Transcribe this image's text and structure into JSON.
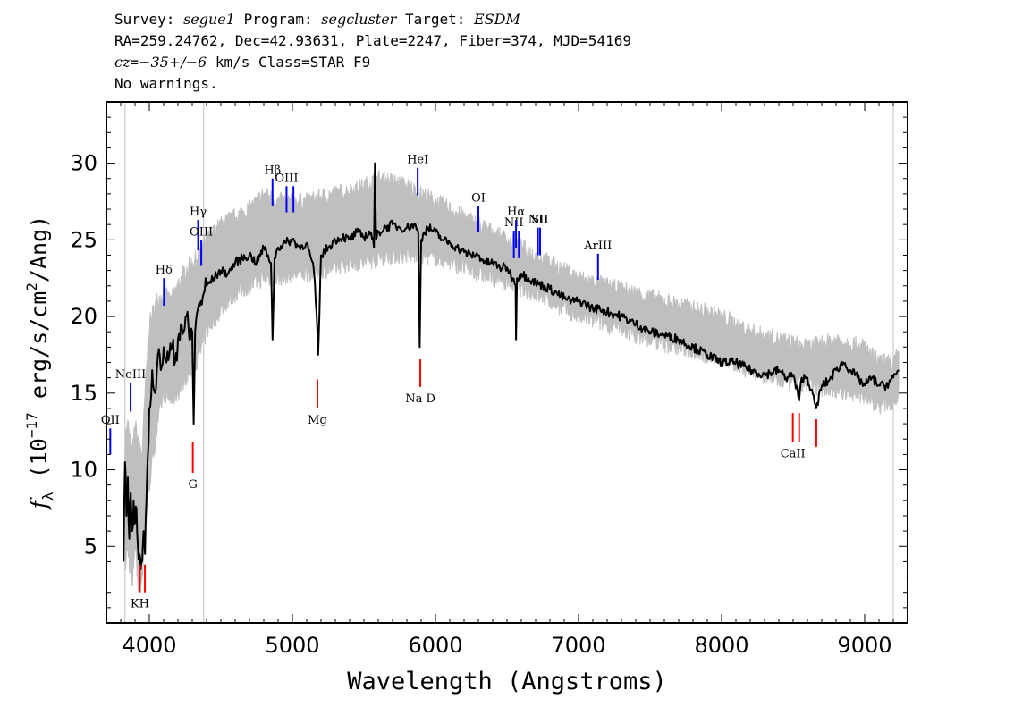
{
  "header": {
    "line1": {
      "survey_label": "Survey: ",
      "survey": "segue1",
      "program_label": " Program: ",
      "program": "segcluster",
      "target_label": " Target: ",
      "target": "ESDM"
    },
    "line2": "RA=259.24762, Dec=42.93631, Plate=2247, Fiber=374, MJD=54169",
    "line3": {
      "cz_label": "cz",
      "cz_eq": "=",
      "cz_value": "−35+/−6",
      "cz_rest": " km/s Class=STAR F9"
    },
    "line4": "No warnings."
  },
  "chart_data": {
    "type": "line",
    "title": "",
    "xlabel": "Wavelength (Angstroms)",
    "ylabel_parts": {
      "f": "f",
      "sub": "λ",
      "open": " (10",
      "exp": "−17",
      "mid": " erg/s/cm",
      "sq": "2",
      "close": "/Ang)"
    },
    "xlim": [
      3700,
      9300
    ],
    "ylim": [
      0,
      34
    ],
    "xticks": [
      4000,
      5000,
      6000,
      7000,
      8000,
      9000
    ],
    "yticks": [
      5,
      10,
      15,
      20,
      25,
      30
    ],
    "vertical_lines": [
      3830,
      4380,
      9200
    ],
    "series": [
      {
        "role": "error-envelope",
        "color": "#bfbfbf",
        "x": [
          3830,
          3850,
          3880,
          3900,
          3920,
          3950,
          3970,
          4000,
          4050,
          4100,
          4150,
          4200,
          4250,
          4300,
          4350,
          4400,
          4500,
          4600,
          4700,
          4800,
          4900,
          5000,
          5100,
          5200,
          5300,
          5400,
          5500,
          5600,
          5700,
          5800,
          5900,
          6000,
          6100,
          6200,
          6300,
          6400,
          6500,
          6600,
          6700,
          6800,
          6900,
          7000,
          7200,
          7400,
          7600,
          7800,
          8000,
          8200,
          8400,
          8600,
          8800,
          9000,
          9100,
          9200,
          9240
        ],
        "y_low": [
          3.5,
          5.0,
          2.0,
          5.5,
          2.5,
          3.0,
          6.0,
          9.0,
          12.5,
          15.0,
          14.5,
          15.0,
          16.0,
          16.5,
          17.5,
          19.0,
          20.5,
          21.5,
          22.0,
          22.5,
          22.5,
          22.8,
          22.8,
          23.0,
          23.2,
          23.5,
          23.5,
          23.8,
          24.0,
          24.0,
          24.0,
          23.8,
          23.5,
          23.2,
          22.8,
          22.5,
          22.3,
          21.8,
          21.5,
          21.0,
          20.5,
          20.0,
          19.5,
          18.8,
          18.2,
          17.8,
          17.2,
          16.5,
          15.8,
          15.5,
          15.2,
          14.8,
          14.2,
          14.5,
          15.0
        ],
        "y_high": [
          12.0,
          13.0,
          11.0,
          13.0,
          12.0,
          11.0,
          15.0,
          19.5,
          21.0,
          21.5,
          21.0,
          22.0,
          23.0,
          23.5,
          24.0,
          25.0,
          26.0,
          26.5,
          27.0,
          28.0,
          27.5,
          27.5,
          27.5,
          27.8,
          28.0,
          28.2,
          28.5,
          29.0,
          28.8,
          28.5,
          28.0,
          27.5,
          27.0,
          26.5,
          26.0,
          25.5,
          25.0,
          24.5,
          24.0,
          23.5,
          23.0,
          22.5,
          22.0,
          21.5,
          21.0,
          20.5,
          20.0,
          19.0,
          18.5,
          18.0,
          18.5,
          18.0,
          17.0,
          17.0,
          17.5
        ]
      },
      {
        "role": "flux",
        "color": "#000000",
        "x": [
          3820,
          3830,
          3840,
          3850,
          3860,
          3870,
          3880,
          3890,
          3900,
          3910,
          3920,
          3930,
          3940,
          3950,
          3960,
          3970,
          3980,
          3990,
          4000,
          4020,
          4040,
          4060,
          4080,
          4100,
          4120,
          4140,
          4160,
          4180,
          4200,
          4220,
          4240,
          4260,
          4280,
          4300,
          4310,
          4320,
          4340,
          4360,
          4380,
          4400,
          4450,
          4500,
          4550,
          4600,
          4650,
          4700,
          4750,
          4800,
          4830,
          4850,
          4861,
          4875,
          4900,
          4950,
          5000,
          5050,
          5100,
          5150,
          5170,
          5180,
          5190,
          5200,
          5250,
          5300,
          5350,
          5400,
          5450,
          5500,
          5550,
          5570,
          5577,
          5585,
          5600,
          5650,
          5700,
          5750,
          5800,
          5850,
          5880,
          5890,
          5900,
          5920,
          5950,
          6000,
          6050,
          6100,
          6150,
          6200,
          6250,
          6300,
          6350,
          6400,
          6450,
          6500,
          6540,
          6560,
          6563,
          6570,
          6600,
          6650,
          6700,
          6750,
          6800,
          6850,
          6900,
          6950,
          7000,
          7050,
          7100,
          7150,
          7200,
          7300,
          7400,
          7500,
          7600,
          7700,
          7800,
          7900,
          8000,
          8100,
          8200,
          8300,
          8400,
          8450,
          8500,
          8542,
          8560,
          8600,
          8662,
          8700,
          8750,
          8800,
          8850,
          8900,
          8950,
          9000,
          9050,
          9100,
          9150,
          9200,
          9240
        ],
        "y": [
          4.0,
          10.5,
          7.0,
          9.5,
          5.5,
          8.5,
          6.0,
          8.0,
          6.5,
          7.5,
          5.0,
          4.5,
          3.5,
          4.0,
          6.0,
          4.5,
          8.0,
          11.0,
          14.0,
          16.5,
          15.0,
          17.5,
          16.5,
          18.0,
          17.0,
          17.5,
          18.0,
          17.0,
          18.5,
          19.5,
          19.0,
          20.0,
          18.5,
          19.0,
          13.0,
          19.0,
          20.5,
          21.0,
          21.5,
          22.0,
          22.5,
          23.0,
          22.8,
          23.5,
          23.8,
          24.0,
          23.5,
          24.5,
          24.0,
          23.5,
          18.5,
          23.8,
          24.5,
          24.8,
          25.0,
          24.5,
          24.8,
          23.0,
          20.0,
          17.5,
          20.5,
          24.0,
          24.5,
          25.0,
          25.2,
          25.0,
          25.5,
          25.2,
          25.5,
          24.5,
          30.0,
          25.0,
          25.5,
          25.8,
          26.0,
          25.8,
          25.8,
          26.0,
          25.5,
          18.0,
          25.0,
          25.5,
          25.8,
          25.5,
          25.0,
          24.8,
          24.5,
          24.2,
          24.0,
          24.0,
          23.5,
          23.5,
          23.2,
          23.2,
          22.5,
          22.0,
          18.5,
          22.5,
          22.8,
          22.5,
          22.2,
          22.0,
          21.8,
          21.5,
          21.2,
          21.0,
          21.0,
          20.8,
          20.5,
          20.5,
          20.3,
          20.0,
          19.5,
          19.0,
          18.8,
          18.5,
          18.0,
          17.5,
          17.0,
          17.0,
          16.5,
          16.2,
          16.5,
          16.0,
          16.2,
          14.5,
          16.0,
          16.0,
          14.0,
          15.5,
          15.8,
          16.5,
          17.0,
          16.5,
          16.0,
          15.5,
          16.0,
          15.5,
          15.5,
          16.0,
          16.5
        ]
      }
    ],
    "emission_lines": [
      {
        "label": "OII",
        "x": 3727,
        "y_top": 12.7,
        "y_bottom": 11.0
      },
      {
        "label": "NeIII",
        "x": 3869,
        "y_top": 15.7,
        "y_bottom": 13.8
      },
      {
        "label": "Hδ",
        "x": 4102,
        "y_top": 22.5,
        "y_bottom": 20.7
      },
      {
        "label": "Hγ",
        "x": 4341,
        "y_top": 26.3,
        "y_bottom": 24.3
      },
      {
        "label": "OIII",
        "x": 4363,
        "y_top": 25.0,
        "y_bottom": 23.3
      },
      {
        "label": "Hβ",
        "x": 4861,
        "y_top": 29.0,
        "y_bottom": 27.2
      },
      {
        "label": "OIII",
        "x": 4959,
        "y_top": 28.5,
        "y_bottom": 26.8
      },
      {
        "label": "",
        "x": 5007,
        "y_top": 28.5,
        "y_bottom": 26.8
      },
      {
        "label": "HeI",
        "x": 5876,
        "y_top": 29.7,
        "y_bottom": 27.9
      },
      {
        "label": "OI",
        "x": 6300,
        "y_top": 27.2,
        "y_bottom": 25.5
      },
      {
        "label": "NII",
        "x": 6548,
        "y_top": 25.6,
        "y_bottom": 23.8
      },
      {
        "label": "Hα",
        "x": 6563,
        "y_top": 26.3,
        "y_bottom": 24.5
      },
      {
        "label": "",
        "x": 6583,
        "y_top": 25.6,
        "y_bottom": 23.8
      },
      {
        "label": "NII",
        "x": 6716,
        "y_top": 25.8,
        "y_bottom": 24.0
      },
      {
        "label": "SII",
        "x": 6731,
        "y_top": 25.8,
        "y_bottom": 24.0
      },
      {
        "label": "ArIII",
        "x": 7136,
        "y_top": 24.1,
        "y_bottom": 22.4
      }
    ],
    "absorption_lines": [
      {
        "label": "KH",
        "x": 3934,
        "y_top": 3.8,
        "y_bottom": 2.0
      },
      {
        "label": "",
        "x": 3969,
        "y_top": 3.8,
        "y_bottom": 2.0
      },
      {
        "label": "G",
        "x": 4304,
        "y_top": 11.8,
        "y_bottom": 9.8
      },
      {
        "label": "Mg",
        "x": 5175,
        "y_top": 15.9,
        "y_bottom": 14.0
      },
      {
        "label": "Na D",
        "x": 5894,
        "y_top": 17.2,
        "y_bottom": 15.4
      },
      {
        "label": "CaII",
        "x": 8498,
        "y_top": 13.7,
        "y_bottom": 11.8
      },
      {
        "label": "",
        "x": 8542,
        "y_top": 13.7,
        "y_bottom": 11.8
      },
      {
        "label": "",
        "x": 8662,
        "y_top": 13.3,
        "y_bottom": 11.5
      }
    ],
    "colors": {
      "emission": "#0000ff",
      "absorption": "#ff0000",
      "envelope": "#bfbfbf",
      "flux": "#000000",
      "vline": "#bfbfbf"
    }
  }
}
